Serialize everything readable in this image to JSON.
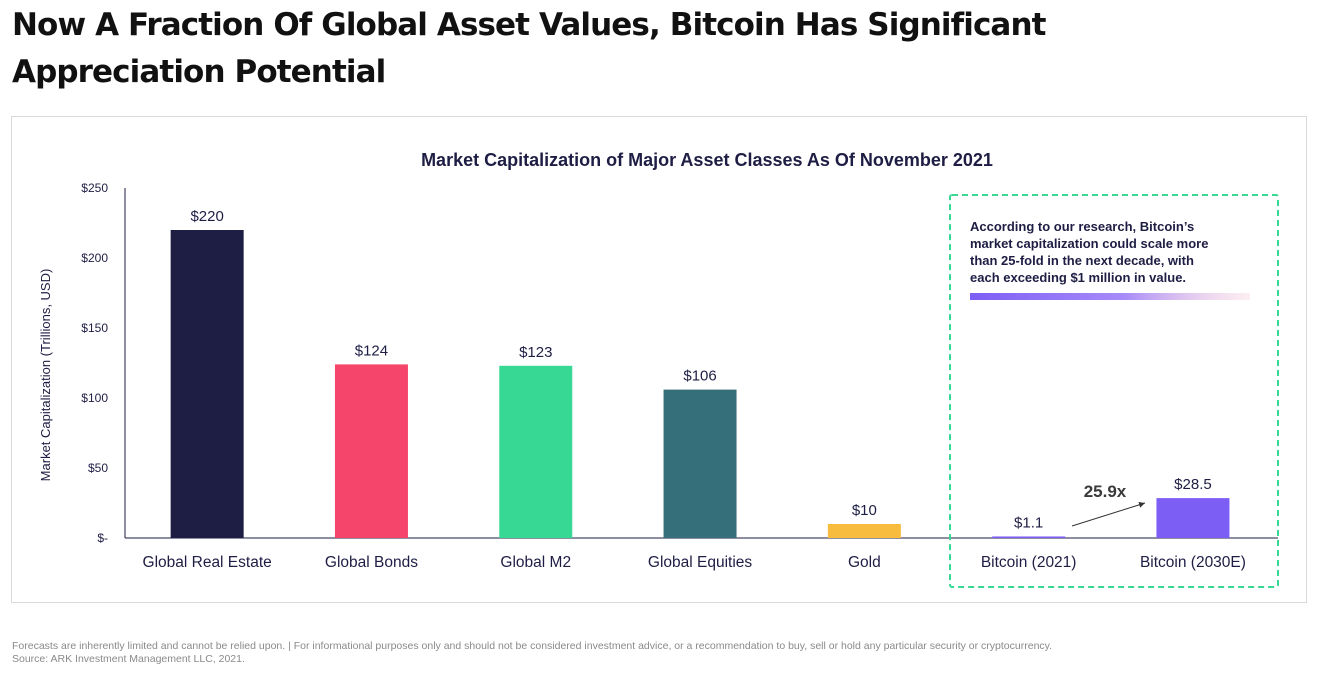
{
  "page": {
    "title_line1": "Now A Fraction Of Global Asset Values, Bitcoin Has Significant",
    "title_line2": "Appreciation Potential"
  },
  "chart_data": {
    "type": "bar",
    "title": "Market Capitalization of Major Asset Classes As Of November 2021",
    "ylabel": "Market Capitalization (Trillions, USD)",
    "xlabel": "",
    "ylim": [
      0,
      250
    ],
    "yticks": [
      0,
      50,
      100,
      150,
      200,
      250
    ],
    "ytick_labels": [
      "$-",
      "$50",
      "$100",
      "$150",
      "$200",
      "$250"
    ],
    "grid": false,
    "categories": [
      "Global Real Estate",
      "Global Bonds",
      "Global M2",
      "Global Equities",
      "Gold",
      "Bitcoin (2021)",
      "Bitcoin (2030E)"
    ],
    "values": [
      220,
      124,
      123,
      106,
      10,
      1.1,
      28.5
    ],
    "data_labels": [
      "$220",
      "$124",
      "$123",
      "$106",
      "$10",
      "$1.1",
      "$28.5"
    ],
    "colors": [
      "#1e1d44",
      "#f6456b",
      "#36d894",
      "#356f79",
      "#f7bb3d",
      "#7d5ef5",
      "#7d5ef5"
    ],
    "annotation": {
      "multiplier_label": "25.9x",
      "callout_lines": [
        "According to our research, Bitcoin’s",
        "market capitalization could scale more",
        "than 25-fold in the next decade, with",
        "each exceeding $1 million in value."
      ]
    }
  },
  "footer": {
    "disclaimer": "Forecasts are inherently limited and cannot be relied upon. | For informational purposes only and should not be considered investment advice, or a recommendation to buy, sell or hold any particular security or cryptocurrency.",
    "source": "Source: ARK Investment Management LLC, 2021."
  },
  "colors": {
    "text_dark": "#1e1d44",
    "highlight_border": "#36d894",
    "accent_purple": "#7d5ef5"
  }
}
